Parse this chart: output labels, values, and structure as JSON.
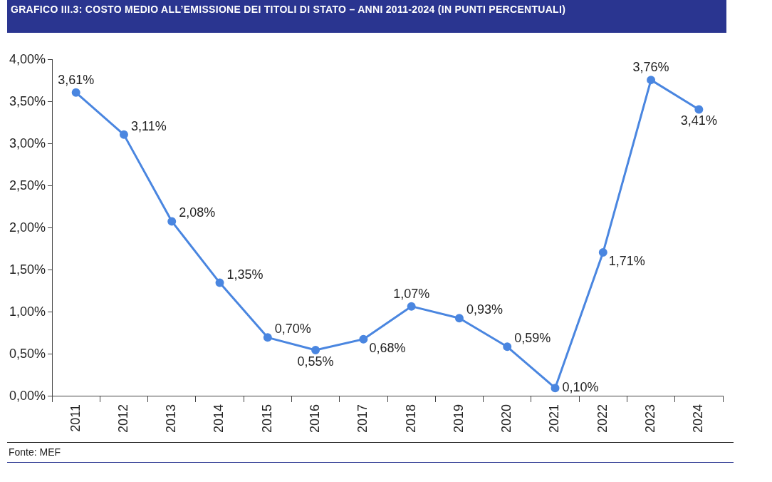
{
  "chart_data": {
    "type": "line",
    "title": "GRAFICO III.3: COSTO MEDIO ALL’EMISSIONE DEI TITOLI DI STATO – ANNI 2011-2024 (IN PUNTI PERCENTUALI)",
    "categories": [
      "2011",
      "2012",
      "2013",
      "2014",
      "2015",
      "2016",
      "2017",
      "2018",
      "2019",
      "2020",
      "2021",
      "2022",
      "2023",
      "2024"
    ],
    "series": [
      {
        "color": "#4a86e0",
        "values": [
          3.61,
          3.11,
          2.08,
          1.35,
          0.7,
          0.55,
          0.68,
          1.07,
          0.93,
          0.59,
          0.1,
          1.71,
          3.76,
          3.41
        ],
        "value_labels": [
          "3,61%",
          "3,11%",
          "2,08%",
          "1,35%",
          "0,70%",
          "0,55%",
          "0,68%",
          "1,07%",
          "0,93%",
          "0,59%",
          "0,10%",
          "1,71%",
          "3,76%",
          "3,41%"
        ]
      }
    ],
    "ylim": [
      0,
      4
    ],
    "yticks": [
      {
        "value": 0,
        "label": "0,00%"
      },
      {
        "value": 0.5,
        "label": "0,50%"
      },
      {
        "value": 1,
        "label": "1,00%"
      },
      {
        "value": 1.5,
        "label": "1,50%"
      },
      {
        "value": 2,
        "label": "2,00%"
      },
      {
        "value": 2.5,
        "label": "2,50%"
      },
      {
        "value": 3,
        "label": "3,00%"
      },
      {
        "value": 3.5,
        "label": "3,50%"
      },
      {
        "value": 4,
        "label": "4,00%"
      }
    ],
    "marker": "circle",
    "line_style": "solid",
    "legend": false,
    "annotations": [
      "Fonte: MEF"
    ]
  }
}
